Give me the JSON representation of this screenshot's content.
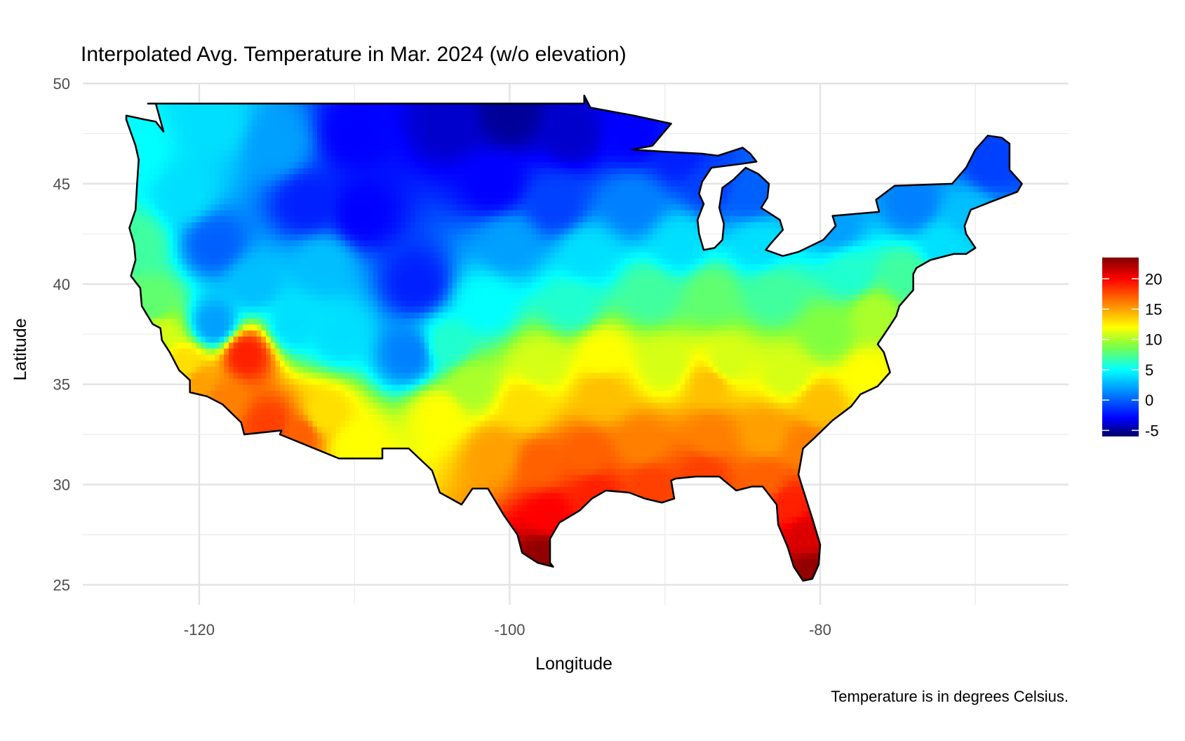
{
  "chart_data": {
    "type": "heatmap",
    "title": "Interpolated Avg. Temperature in Mar. 2024 (w/o elevation)",
    "xlabel": "Longitude",
    "ylabel": "Latitude",
    "caption": "Temperature is in degrees Celsius.",
    "xlim": [
      -127.5,
      -64
    ],
    "ylim": [
      24,
      50
    ],
    "x_ticks": [
      -120,
      -100,
      -80
    ],
    "x_tick_labels": [
      "-120",
      "-100",
      "-80"
    ],
    "x_minor_gridlines": [
      -110,
      -90,
      -70
    ],
    "y_ticks": [
      25,
      30,
      35,
      40,
      45,
      50
    ],
    "y_tick_labels": [
      "25",
      "30",
      "35",
      "40",
      "45",
      "50"
    ],
    "y_minor_gridlines": [
      27.5,
      32.5,
      37.5,
      42.5,
      47.5
    ],
    "grid": true,
    "legend": {
      "position": "right",
      "min": -6,
      "max": 23.5,
      "ticks": [
        -5,
        0,
        5,
        10,
        15,
        20
      ],
      "tick_labels": [
        "-5",
        "0",
        "5",
        "10",
        "15",
        "20"
      ]
    },
    "colorscale": [
      {
        "value": -6,
        "color": "#000066"
      },
      {
        "value": -3,
        "color": "#0000ff"
      },
      {
        "value": 1,
        "color": "#0080ff"
      },
      {
        "value": 5,
        "color": "#00ffff"
      },
      {
        "value": 9,
        "color": "#80ff40"
      },
      {
        "value": 12,
        "color": "#ffff00"
      },
      {
        "value": 16,
        "color": "#ff8000"
      },
      {
        "value": 20,
        "color": "#ff0000"
      },
      {
        "value": 23.5,
        "color": "#800000"
      }
    ],
    "region_outline": [
      [
        -123.3,
        49
      ],
      [
        -95.2,
        49
      ],
      [
        -95.2,
        49.4
      ],
      [
        -94.8,
        48.8
      ],
      [
        -92,
        48.4
      ],
      [
        -89.6,
        48
      ],
      [
        -90.8,
        46.9
      ],
      [
        -92.1,
        46.7
      ],
      [
        -90,
        46.6
      ],
      [
        -87.6,
        46.5
      ],
      [
        -86.6,
        46.4
      ],
      [
        -85,
        46.8
      ],
      [
        -84.5,
        46.5
      ],
      [
        -84.1,
        46.1
      ],
      [
        -85,
        46
      ],
      [
        -87,
        45.8
      ],
      [
        -87.6,
        45.1
      ],
      [
        -87.8,
        44.5
      ],
      [
        -87.5,
        44
      ],
      [
        -87.9,
        43.2
      ],
      [
        -87.8,
        42.5
      ],
      [
        -87.5,
        41.7
      ],
      [
        -86.8,
        41.8
      ],
      [
        -86.3,
        42.2
      ],
      [
        -86.2,
        43
      ],
      [
        -86.5,
        43.8
      ],
      [
        -86.3,
        44.8
      ],
      [
        -85.6,
        45.2
      ],
      [
        -84.8,
        45.8
      ],
      [
        -84,
        45.5
      ],
      [
        -83.3,
        45
      ],
      [
        -83.4,
        44.3
      ],
      [
        -83.8,
        43.8
      ],
      [
        -82.6,
        43.2
      ],
      [
        -82.4,
        42.7
      ],
      [
        -83.2,
        42
      ],
      [
        -83.5,
        41.7
      ],
      [
        -82.4,
        41.4
      ],
      [
        -81.4,
        41.6
      ],
      [
        -79.8,
        42.2
      ],
      [
        -79,
        42.9
      ],
      [
        -79.2,
        43.4
      ],
      [
        -76.2,
        43.6
      ],
      [
        -76.4,
        44.2
      ],
      [
        -75.2,
        44.9
      ],
      [
        -71.5,
        45
      ],
      [
        -70.6,
        45.8
      ],
      [
        -70,
        46.7
      ],
      [
        -69.2,
        47.4
      ],
      [
        -68.3,
        47.3
      ],
      [
        -67.8,
        47
      ],
      [
        -67.8,
        45.7
      ],
      [
        -67,
        45
      ],
      [
        -67.3,
        44.6
      ],
      [
        -69,
        44.1
      ],
      [
        -70.3,
        43.7
      ],
      [
        -70.7,
        42.9
      ],
      [
        -70.6,
        42.5
      ],
      [
        -70,
        41.8
      ],
      [
        -70.6,
        41.5
      ],
      [
        -71.4,
        41.5
      ],
      [
        -72.9,
        41.2
      ],
      [
        -73.8,
        40.8
      ],
      [
        -74,
        40.5
      ],
      [
        -74,
        39.7
      ],
      [
        -74.9,
        38.9
      ],
      [
        -75.1,
        38.4
      ],
      [
        -75.6,
        37.8
      ],
      [
        -76.3,
        37
      ],
      [
        -75.9,
        36.6
      ],
      [
        -75.5,
        35.6
      ],
      [
        -76.3,
        34.9
      ],
      [
        -77.4,
        34.5
      ],
      [
        -78,
        33.9
      ],
      [
        -79.2,
        33.2
      ],
      [
        -80.4,
        32.3
      ],
      [
        -81.1,
        31.8
      ],
      [
        -81.4,
        30.5
      ],
      [
        -81,
        29.5
      ],
      [
        -80.5,
        28.3
      ],
      [
        -80,
        27
      ],
      [
        -80.1,
        26
      ],
      [
        -80.5,
        25.3
      ],
      [
        -81.1,
        25.2
      ],
      [
        -81.7,
        25.9
      ],
      [
        -82.1,
        26.9
      ],
      [
        -82.7,
        28
      ],
      [
        -82.8,
        29
      ],
      [
        -83.7,
        29.9
      ],
      [
        -84.4,
        29.9
      ],
      [
        -85.4,
        29.7
      ],
      [
        -86.5,
        30.4
      ],
      [
        -88,
        30.4
      ],
      [
        -89.3,
        30.3
      ],
      [
        -89.6,
        30.2
      ],
      [
        -89.4,
        29.3
      ],
      [
        -90.2,
        29.1
      ],
      [
        -91.3,
        29.3
      ],
      [
        -92.3,
        29.6
      ],
      [
        -93.8,
        29.7
      ],
      [
        -94.7,
        29.3
      ],
      [
        -95.5,
        28.7
      ],
      [
        -96.8,
        28.1
      ],
      [
        -97.4,
        27.3
      ],
      [
        -97.4,
        26.1
      ],
      [
        -97.2,
        25.9
      ],
      [
        -98.2,
        26.1
      ],
      [
        -99.2,
        26.6
      ],
      [
        -99.5,
        27.5
      ],
      [
        -100.4,
        28.5
      ],
      [
        -101.4,
        29.8
      ],
      [
        -102.4,
        29.8
      ],
      [
        -103.1,
        29
      ],
      [
        -103.8,
        29.3
      ],
      [
        -104.5,
        29.6
      ],
      [
        -105,
        30.7
      ],
      [
        -106.5,
        31.8
      ],
      [
        -108.2,
        31.8
      ],
      [
        -108.2,
        31.3
      ],
      [
        -111,
        31.3
      ],
      [
        -114.8,
        32.5
      ],
      [
        -114.7,
        32.7
      ],
      [
        -117.1,
        32.5
      ],
      [
        -117.3,
        33.1
      ],
      [
        -118.1,
        33.7
      ],
      [
        -118.5,
        34
      ],
      [
        -119.5,
        34.4
      ],
      [
        -120.6,
        34.6
      ],
      [
        -120.6,
        35.2
      ],
      [
        -121.3,
        35.7
      ],
      [
        -121.9,
        36.6
      ],
      [
        -122.4,
        37.2
      ],
      [
        -122.5,
        37.8
      ],
      [
        -123,
        38
      ],
      [
        -123.7,
        38.9
      ],
      [
        -123.8,
        39.8
      ],
      [
        -124.4,
        40.4
      ],
      [
        -124.1,
        41.2
      ],
      [
        -124.2,
        42
      ],
      [
        -124.5,
        42.8
      ],
      [
        -124.1,
        43.7
      ],
      [
        -124,
        45
      ],
      [
        -123.9,
        46.2
      ],
      [
        -124.1,
        46.9
      ],
      [
        -124.7,
        48.2
      ],
      [
        -124.7,
        48.4
      ],
      [
        -123.5,
        48.2
      ],
      [
        -122.8,
        48.1
      ],
      [
        -122.3,
        47.6
      ],
      [
        -122.8,
        49
      ]
    ],
    "temperature_anchors": [
      {
        "lon": -124,
        "lat": 42,
        "t": 7
      },
      {
        "lon": -124,
        "lat": 46.5,
        "t": 5
      },
      {
        "lon": -123,
        "lat": 39,
        "t": 8
      },
      {
        "lon": -122.5,
        "lat": 37.5,
        "t": 11
      },
      {
        "lon": -121,
        "lat": 36,
        "t": 13
      },
      {
        "lon": -120,
        "lat": 35,
        "t": 15
      },
      {
        "lon": -118.5,
        "lat": 34.2,
        "t": 16
      },
      {
        "lon": -117,
        "lat": 36.5,
        "t": 19
      },
      {
        "lon": -115.5,
        "lat": 33,
        "t": 18
      },
      {
        "lon": -113.5,
        "lat": 32.5,
        "t": 17
      },
      {
        "lon": -112,
        "lat": 33.5,
        "t": 13
      },
      {
        "lon": -110,
        "lat": 32,
        "t": 12
      },
      {
        "lon": -119,
        "lat": 42,
        "t": 0
      },
      {
        "lon": -119,
        "lat": 38,
        "t": 2
      },
      {
        "lon": -121,
        "lat": 44.5,
        "t": 4
      },
      {
        "lon": -116.5,
        "lat": 40,
        "t": 3
      },
      {
        "lon": -112,
        "lat": 41,
        "t": 3
      },
      {
        "lon": -111,
        "lat": 37.5,
        "t": 4
      },
      {
        "lon": -114,
        "lat": 38,
        "t": 4
      },
      {
        "lon": -113,
        "lat": 44,
        "t": -2
      },
      {
        "lon": -109.5,
        "lat": 43.5,
        "t": -3
      },
      {
        "lon": -106,
        "lat": 40,
        "t": -2
      },
      {
        "lon": -106.5,
        "lat": 36.5,
        "t": 1
      },
      {
        "lon": -115,
        "lat": 47,
        "t": 2
      },
      {
        "lon": -119,
        "lat": 48,
        "t": 4
      },
      {
        "lon": -110,
        "lat": 47.5,
        "t": -3
      },
      {
        "lon": -104,
        "lat": 48,
        "t": -4
      },
      {
        "lon": -100,
        "lat": 48.5,
        "t": -5
      },
      {
        "lon": -96,
        "lat": 47.5,
        "t": -4
      },
      {
        "lon": -92,
        "lat": 47.5,
        "t": -3
      },
      {
        "lon": -89,
        "lat": 46.5,
        "t": -2
      },
      {
        "lon": -87,
        "lat": 45,
        "t": -1
      },
      {
        "lon": -84.5,
        "lat": 44.5,
        "t": 0
      },
      {
        "lon": -101,
        "lat": 45,
        "t": -3
      },
      {
        "lon": -97,
        "lat": 44,
        "t": -1
      },
      {
        "lon": -92,
        "lat": 44,
        "t": 1
      },
      {
        "lon": -100,
        "lat": 42,
        "t": 2
      },
      {
        "lon": -95,
        "lat": 41.5,
        "t": 4
      },
      {
        "lon": -89,
        "lat": 42,
        "t": 4
      },
      {
        "lon": -84,
        "lat": 42,
        "t": 4
      },
      {
        "lon": -79,
        "lat": 43,
        "t": 2
      },
      {
        "lon": -74,
        "lat": 44,
        "t": 1
      },
      {
        "lon": -69,
        "lat": 46,
        "t": -1
      },
      {
        "lon": -70.5,
        "lat": 43.5,
        "t": 3
      },
      {
        "lon": -72,
        "lat": 42,
        "t": 4
      },
      {
        "lon": -74.5,
        "lat": 40.5,
        "t": 7
      },
      {
        "lon": -78,
        "lat": 40.5,
        "t": 6
      },
      {
        "lon": -76.5,
        "lat": 38.5,
        "t": 10
      },
      {
        "lon": -79.5,
        "lat": 37.5,
        "t": 9
      },
      {
        "lon": -77,
        "lat": 35.5,
        "t": 12
      },
      {
        "lon": -83,
        "lat": 39.5,
        "t": 7
      },
      {
        "lon": -87,
        "lat": 39.5,
        "t": 8
      },
      {
        "lon": -91,
        "lat": 39.5,
        "t": 7
      },
      {
        "lon": -96,
        "lat": 39,
        "t": 6
      },
      {
        "lon": -101.5,
        "lat": 39,
        "t": 5
      },
      {
        "lon": -104,
        "lat": 37,
        "t": 6
      },
      {
        "lon": -102.5,
        "lat": 35,
        "t": 10
      },
      {
        "lon": -98,
        "lat": 36,
        "t": 11
      },
      {
        "lon": -94,
        "lat": 36.5,
        "t": 12
      },
      {
        "lon": -90,
        "lat": 36,
        "t": 11
      },
      {
        "lon": -86,
        "lat": 36,
        "t": 11
      },
      {
        "lon": -87,
        "lat": 35,
        "t": 14
      },
      {
        "lon": -82,
        "lat": 35.5,
        "t": 11
      },
      {
        "lon": -80,
        "lat": 34,
        "t": 14
      },
      {
        "lon": -94,
        "lat": 34.5,
        "t": 14
      },
      {
        "lon": -99,
        "lat": 34,
        "t": 13
      },
      {
        "lon": -104.5,
        "lat": 33.5,
        "t": 12
      },
      {
        "lon": -101,
        "lat": 31.5,
        "t": 15
      },
      {
        "lon": -98,
        "lat": 31,
        "t": 17
      },
      {
        "lon": -95,
        "lat": 31.5,
        "t": 17
      },
      {
        "lon": -91.5,
        "lat": 32,
        "t": 16
      },
      {
        "lon": -87,
        "lat": 32.5,
        "t": 16
      },
      {
        "lon": -83.5,
        "lat": 32.5,
        "t": 15
      },
      {
        "lon": -81,
        "lat": 32,
        "t": 16
      },
      {
        "lon": -97.5,
        "lat": 28.5,
        "t": 20
      },
      {
        "lon": -97.8,
        "lat": 26.5,
        "t": 23
      },
      {
        "lon": -94.5,
        "lat": 29.5,
        "t": 19
      },
      {
        "lon": -91,
        "lat": 30,
        "t": 18
      },
      {
        "lon": -87.5,
        "lat": 30.5,
        "t": 18
      },
      {
        "lon": -83.5,
        "lat": 30.2,
        "t": 17
      },
      {
        "lon": -82,
        "lat": 29,
        "t": 19
      },
      {
        "lon": -81,
        "lat": 27.5,
        "t": 21
      },
      {
        "lon": -80.6,
        "lat": 25.6,
        "t": 23
      }
    ]
  }
}
